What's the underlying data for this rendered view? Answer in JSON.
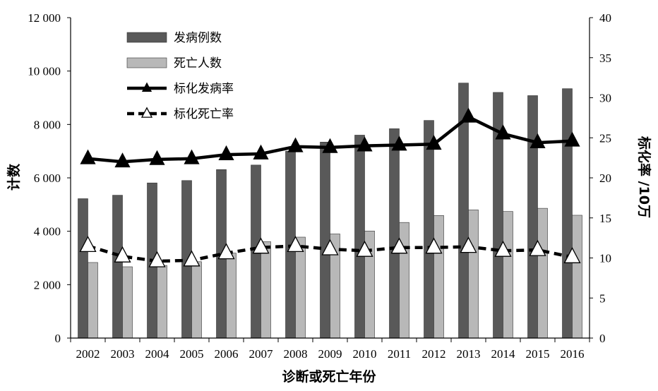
{
  "chart_data": {
    "type": "bar",
    "categories": [
      "2002",
      "2003",
      "2004",
      "2005",
      "2006",
      "2007",
      "2008",
      "2009",
      "2010",
      "2011",
      "2012",
      "2013",
      "2014",
      "2015",
      "2016"
    ],
    "series": [
      {
        "name": "发病例数",
        "kind": "bar",
        "axis": "left",
        "color": "#595959",
        "values": [
          5220,
          5350,
          5810,
          5900,
          6310,
          6480,
          7000,
          7340,
          7600,
          7840,
          8150,
          9550,
          9200,
          9080,
          9340
        ]
      },
      {
        "name": "死亡人数",
        "kind": "bar",
        "axis": "left",
        "color": "#b8b8b8",
        "values": [
          2830,
          2670,
          2720,
          2860,
          3180,
          3610,
          3780,
          3900,
          4010,
          4330,
          4590,
          4800,
          4740,
          4860,
          4600
        ]
      },
      {
        "name": "标化发病率",
        "kind": "line",
        "axis": "right",
        "color": "#000000",
        "line_style": "solid",
        "marker": "filled-triangle",
        "values": [
          22.4,
          22.0,
          22.3,
          22.4,
          22.9,
          23.0,
          23.9,
          23.8,
          24.0,
          24.1,
          24.2,
          27.6,
          25.5,
          24.4,
          24.6
        ]
      },
      {
        "name": "标化死亡率",
        "kind": "line",
        "axis": "right",
        "color": "#000000",
        "line_style": "dashed",
        "marker": "open-triangle",
        "values": [
          11.5,
          10.2,
          9.6,
          9.7,
          10.6,
          11.3,
          11.5,
          11.1,
          10.9,
          11.3,
          11.3,
          11.4,
          10.9,
          11.0,
          10.1
        ]
      }
    ],
    "xlabel": "诊断或死亡年份",
    "ylabel": "计数",
    "y2label": "标化率 /10万",
    "ylim": [
      0,
      12000
    ],
    "y2lim": [
      0,
      40
    ],
    "yticks": [
      "0",
      "2 000",
      "4 000",
      "6 000",
      "8 000",
      "10 000",
      "12 000"
    ],
    "y2ticks": [
      "0",
      "5",
      "10",
      "15",
      "20",
      "25",
      "30",
      "35",
      "40"
    ],
    "grid": false,
    "legend_position": "top-left"
  }
}
